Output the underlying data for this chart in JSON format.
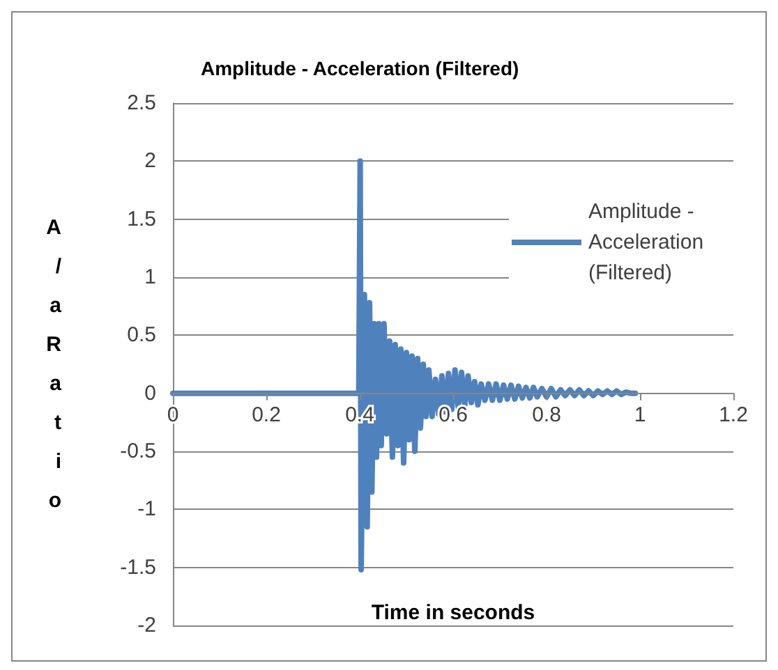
{
  "chart_data": {
    "type": "line",
    "title": "Amplitude - Acceleration (Filtered)",
    "xlabel": "Time in seconds",
    "ylabel": "A/aRatio",
    "xlim": [
      0,
      1.2
    ],
    "xticks": [
      0,
      0.2,
      0.4,
      0.6,
      0.8,
      1,
      1.2
    ],
    "ylim": [
      -2,
      2.5
    ],
    "yticks": [
      -2,
      -1.5,
      -1,
      -0.5,
      0,
      0.5,
      1,
      1.5,
      2,
      2.5
    ],
    "grid": "y",
    "legend": "right",
    "marker": "none",
    "line_style": "solid",
    "series": [
      {
        "name": "Amplitude - Acceleration (Filtered)",
        "color": "#4f81bd",
        "x": [
          0,
          0.1,
          0.2,
          0.3,
          0.398,
          0.401,
          0.403,
          0.41,
          0.416,
          0.421,
          0.426,
          0.431,
          0.436,
          0.441,
          0.446,
          0.452,
          0.458,
          0.464,
          0.47,
          0.476,
          0.482,
          0.488,
          0.494,
          0.5,
          0.506,
          0.512,
          0.518,
          0.524,
          0.53,
          0.536,
          0.542,
          0.548,
          0.555,
          0.562,
          0.569,
          0.576,
          0.583,
          0.59,
          0.597,
          0.604,
          0.611,
          0.618,
          0.625,
          0.632,
          0.639,
          0.646,
          0.653,
          0.66,
          0.668,
          0.676,
          0.684,
          0.692,
          0.7,
          0.708,
          0.716,
          0.724,
          0.732,
          0.74,
          0.748,
          0.756,
          0.764,
          0.772,
          0.78,
          0.79,
          0.8,
          0.81,
          0.82,
          0.83,
          0.84,
          0.85,
          0.86,
          0.87,
          0.88,
          0.89,
          0.9,
          0.91,
          0.92,
          0.93,
          0.94,
          0.95,
          0.96,
          0.97,
          0.98,
          0.99
        ],
        "values": [
          0,
          0,
          0,
          0,
          0,
          2.0,
          -1.52,
          0.85,
          -1.15,
          0.78,
          -0.85,
          0.6,
          -0.55,
          0.6,
          -0.45,
          0.6,
          -0.35,
          0.45,
          -0.55,
          0.42,
          -0.45,
          0.38,
          -0.6,
          0.35,
          -0.4,
          0.32,
          -0.5,
          0.3,
          -0.3,
          0.25,
          -0.2,
          0.2,
          -0.2,
          0.12,
          -0.18,
          0.15,
          -0.16,
          0.17,
          -0.14,
          0.2,
          -0.12,
          0.18,
          -0.1,
          0.15,
          -0.08,
          0.1,
          -0.1,
          0.08,
          -0.06,
          0.08,
          -0.06,
          0.08,
          -0.06,
          0.07,
          -0.05,
          0.07,
          -0.05,
          0.06,
          -0.04,
          0.05,
          -0.04,
          0.05,
          -0.03,
          0.04,
          -0.03,
          0.04,
          -0.03,
          0.03,
          -0.02,
          0.03,
          -0.02,
          0.03,
          -0.02,
          0.02,
          -0.02,
          0.02,
          -0.01,
          0.02,
          -0.01,
          0.02,
          -0.01,
          0.01,
          0,
          0
        ]
      }
    ]
  }
}
